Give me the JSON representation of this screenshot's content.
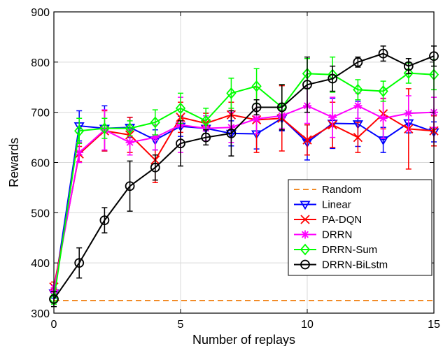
{
  "chart_data": {
    "type": "line",
    "xlabel": "Number of replays",
    "ylabel": "Rewards",
    "xlim": [
      0,
      15
    ],
    "ylim": [
      300,
      900
    ],
    "xticks": [
      0,
      5,
      10,
      15
    ],
    "yticks": [
      300,
      400,
      500,
      600,
      700,
      800,
      900
    ],
    "grid": true,
    "legend_position": "bottom-right",
    "x": [
      0,
      1,
      2,
      3,
      4,
      5,
      6,
      7,
      8,
      9,
      10,
      11,
      12,
      13,
      14,
      15
    ],
    "series": [
      {
        "name": "Random",
        "color": "#f28c28",
        "marker": "none",
        "dash": true,
        "values": [
          325,
          325,
          325,
          325,
          325,
          325,
          325,
          325,
          325,
          325,
          325,
          325,
          325,
          325,
          325,
          325
        ],
        "errors": []
      },
      {
        "name": "Linear",
        "color": "#0000ff",
        "marker": "triangle-down",
        "values": [
          340,
          673,
          668,
          670,
          645,
          672,
          668,
          658,
          657,
          688,
          640,
          678,
          677,
          645,
          679,
          661
        ],
        "errors": [
          10,
          30,
          45,
          20,
          20,
          20,
          25,
          25,
          30,
          25,
          35,
          50,
          45,
          25,
          20,
          20
        ]
      },
      {
        "name": "PA-DQN",
        "color": "#ff0000",
        "marker": "x",
        "values": [
          352,
          617,
          663,
          655,
          605,
          690,
          678,
          695,
          685,
          688,
          645,
          675,
          650,
          697,
          667,
          663
        ],
        "errors": [
          10,
          15,
          40,
          35,
          45,
          30,
          20,
          25,
          65,
          65,
          30,
          45,
          30,
          30,
          80,
          30
        ]
      },
      {
        "name": "DRRN",
        "color": "#ff00ff",
        "marker": "star",
        "values": [
          345,
          620,
          665,
          640,
          650,
          675,
          668,
          670,
          687,
          693,
          713,
          690,
          713,
          688,
          698,
          700
        ],
        "errors": [
          10,
          20,
          40,
          25,
          25,
          55,
          25,
          30,
          30,
          25,
          35,
          40,
          25,
          40,
          35,
          30
        ]
      },
      {
        "name": "DRRN-Sum",
        "color": "#00ff00",
        "marker": "diamond",
        "values": [
          328,
          663,
          668,
          668,
          680,
          708,
          683,
          738,
          752,
          710,
          777,
          775,
          745,
          742,
          778,
          775
        ],
        "errors": [
          10,
          25,
          20,
          15,
          25,
          30,
          25,
          30,
          35,
          45,
          30,
          35,
          20,
          20,
          20,
          30
        ]
      },
      {
        "name": "DRRN-BiLstm",
        "color": "#000000",
        "marker": "circle",
        "values": [
          328,
          400,
          485,
          553,
          590,
          638,
          650,
          658,
          710,
          710,
          755,
          767,
          800,
          817,
          792,
          812
        ],
        "errors": [
          15,
          30,
          25,
          50,
          25,
          45,
          15,
          45,
          15,
          45,
          55,
          25,
          10,
          15,
          15,
          20
        ]
      }
    ]
  }
}
